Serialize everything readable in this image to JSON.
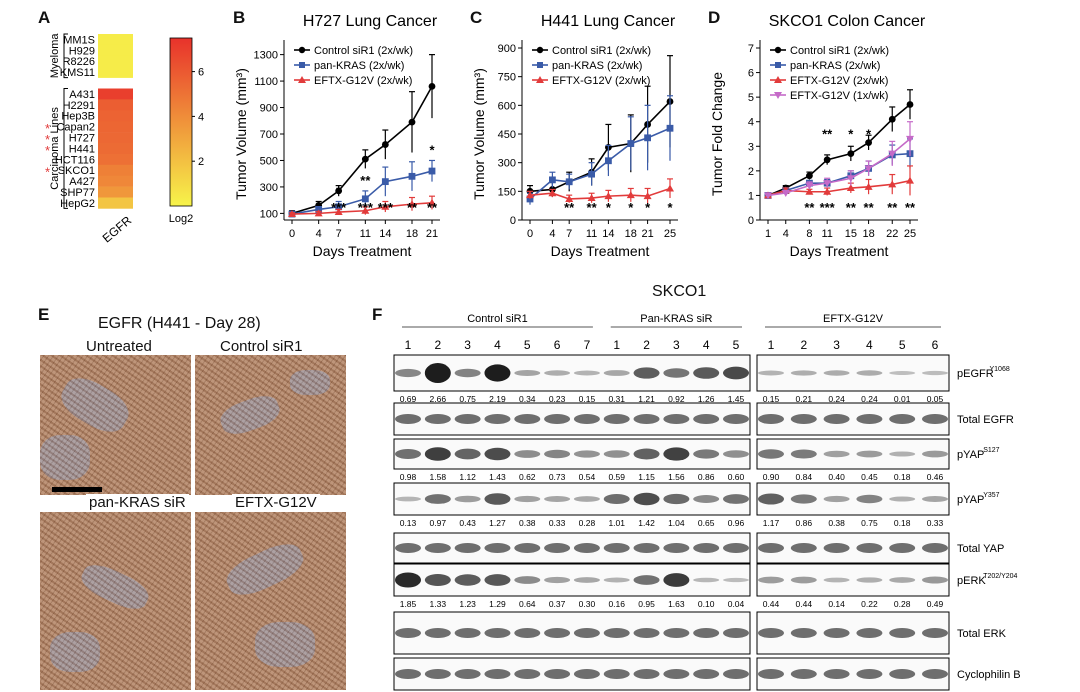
{
  "panel_labels": {
    "A": "A",
    "B": "B",
    "C": "C",
    "D": "D",
    "E": "E",
    "F": "F"
  },
  "panel_a": {
    "group_myeloma": "Myeloma",
    "group_carcinoma": "Carcinoma Lines",
    "xlabel": "EGFR",
    "colorbar_label": "Log2",
    "colorbar_ticks": [
      "2",
      "4",
      "6"
    ],
    "colorbar_range": [
      0,
      7.5
    ],
    "colors": {
      "low": "#f7f44a",
      "high": "#e8322b"
    },
    "rows": [
      {
        "name": "MM1S",
        "value": 0.3,
        "star": false
      },
      {
        "name": "H929",
        "value": 0.3,
        "star": false
      },
      {
        "name": "R8226",
        "value": 0.3,
        "star": false
      },
      {
        "name": "KMS11",
        "value": 0.3,
        "star": false
      },
      {
        "name": "",
        "value": null,
        "star": false
      },
      {
        "name": "A431",
        "value": 7.0,
        "star": false
      },
      {
        "name": "H2291",
        "value": 5.8,
        "star": false
      },
      {
        "name": "Hep3B",
        "value": 5.6,
        "star": false
      },
      {
        "name": "Capan2",
        "value": 5.5,
        "star": true
      },
      {
        "name": "H727",
        "value": 5.4,
        "star": true
      },
      {
        "name": "H441",
        "value": 5.3,
        "star": true
      },
      {
        "name": "HCT116",
        "value": 5.1,
        "star": false
      },
      {
        "name": "SKCO1",
        "value": 4.5,
        "star": true
      },
      {
        "name": "A427",
        "value": 4.2,
        "star": false
      },
      {
        "name": "SHP77",
        "value": 3.6,
        "star": false
      },
      {
        "name": "HepG2",
        "value": 1.8,
        "star": false
      }
    ]
  },
  "chart_data": [
    {
      "type": "line",
      "panel": "B",
      "title": "H727 Lung Cancer",
      "xlabel": "Days Treatment",
      "ylabel": "Tumor Volume (mm³)",
      "x": [
        0,
        4,
        7,
        11,
        14,
        18,
        21
      ],
      "yticks": [
        100,
        300,
        500,
        700,
        900,
        1100,
        1300
      ],
      "ylim": [
        50,
        1350
      ],
      "series": [
        {
          "name": "Control siR1 (2x/wk)",
          "color": "#000000",
          "marker": "circle",
          "values": [
            100,
            160,
            270,
            510,
            620,
            790,
            1060
          ],
          "err": [
            20,
            30,
            40,
            70,
            110,
            230,
            240
          ]
        },
        {
          "name": "pan-KRAS (2x/wk)",
          "color": "#3a5ba8",
          "marker": "square",
          "values": [
            95,
            130,
            150,
            210,
            340,
            380,
            420
          ],
          "err": [
            15,
            20,
            40,
            60,
            110,
            110,
            80
          ]
        },
        {
          "name": "EFTX-G12V (2x/wk)",
          "color": "#e23b3b",
          "marker": "triangle",
          "values": [
            95,
            100,
            110,
            120,
            150,
            170,
            180
          ],
          "err": [
            10,
            15,
            20,
            30,
            40,
            50,
            50
          ]
        }
      ],
      "annotations": [
        {
          "x": 7,
          "text": "*",
          "row": 0
        },
        {
          "x": 11,
          "text": "**",
          "row": 0
        },
        {
          "x": 21,
          "text": "*",
          "row": 0
        },
        {
          "x": 7,
          "text": "***",
          "row": 1
        },
        {
          "x": 11,
          "text": "***",
          "row": 1
        },
        {
          "x": 14,
          "text": "***",
          "row": 1
        },
        {
          "x": 18,
          "text": "**",
          "row": 1
        },
        {
          "x": 21,
          "text": "**",
          "row": 1
        }
      ]
    },
    {
      "type": "line",
      "panel": "C",
      "title": "H441 Lung Cancer",
      "xlabel": "Days Treatment",
      "ylabel": "Tumor Volume (mm³)",
      "x": [
        0,
        4,
        7,
        11,
        14,
        18,
        21,
        25
      ],
      "yticks": [
        0,
        150,
        300,
        450,
        600,
        750,
        900
      ],
      "ylim": [
        0,
        900
      ],
      "series": [
        {
          "name": "Control siR1 (2x/wk)",
          "color": "#000000",
          "marker": "circle",
          "values": [
            150,
            160,
            200,
            250,
            380,
            400,
            500,
            620
          ],
          "err": [
            30,
            40,
            50,
            70,
            120,
            150,
            200,
            240
          ]
        },
        {
          "name": "pan-KRAS (2x/wk)",
          "color": "#3a5ba8",
          "marker": "square",
          "values": [
            110,
            210,
            200,
            240,
            310,
            400,
            430,
            480
          ],
          "err": [
            30,
            40,
            40,
            60,
            80,
            140,
            170,
            170
          ]
        },
        {
          "name": "EFTX-G12V (2x/wk)",
          "color": "#e23b3b",
          "marker": "triangle",
          "values": [
            130,
            140,
            110,
            115,
            125,
            130,
            125,
            165
          ],
          "err": [
            20,
            20,
            20,
            25,
            30,
            35,
            40,
            50
          ]
        }
      ],
      "annotations": [
        {
          "x": 7,
          "text": "**",
          "row": 1
        },
        {
          "x": 11,
          "text": "**",
          "row": 1
        },
        {
          "x": 14,
          "text": "*",
          "row": 1
        },
        {
          "x": 18,
          "text": "*",
          "row": 1
        },
        {
          "x": 21,
          "text": "*",
          "row": 1
        },
        {
          "x": 25,
          "text": "*",
          "row": 1
        }
      ]
    },
    {
      "type": "line",
      "panel": "D",
      "title": "SKCO1 Colon Cancer",
      "xlabel": "Days Treatment",
      "ylabel": "Tumor Fold Change",
      "x": [
        1,
        4,
        8,
        11,
        15,
        18,
        22,
        25
      ],
      "yticks": [
        0,
        1,
        2,
        3,
        4,
        5,
        6,
        7
      ],
      "ylim": [
        0,
        7
      ],
      "series": [
        {
          "name": "Control siR1 (2x/wk)",
          "color": "#000000",
          "marker": "circle",
          "values": [
            1.0,
            1.3,
            1.8,
            2.45,
            2.7,
            3.15,
            4.1,
            4.7
          ],
          "err": [
            0.05,
            0.1,
            0.15,
            0.2,
            0.3,
            0.3,
            0.5,
            0.6
          ]
        },
        {
          "name": "pan-KRAS (2x/wk)",
          "color": "#3a5ba8",
          "marker": "square",
          "values": [
            1.0,
            1.2,
            1.5,
            1.5,
            1.8,
            2.1,
            2.65,
            2.7
          ],
          "err": [
            0.05,
            0.1,
            0.1,
            0.15,
            0.2,
            0.3,
            0.4,
            0.6
          ]
        },
        {
          "name": "EFTX-G12V (2x/wk)",
          "color": "#e23b3b",
          "marker": "triangle",
          "values": [
            1.0,
            1.2,
            1.15,
            1.15,
            1.3,
            1.35,
            1.45,
            1.6
          ],
          "err": [
            0.05,
            0.1,
            0.1,
            0.15,
            0.2,
            0.3,
            0.4,
            0.6
          ]
        },
        {
          "name": "EFTX-G12V (1x/wk)",
          "color": "#c56ac8",
          "marker": "triangle-down",
          "values": [
            1.0,
            1.1,
            1.4,
            1.5,
            1.7,
            2.1,
            2.7,
            3.3
          ],
          "err": [
            0.05,
            0.1,
            0.15,
            0.2,
            0.3,
            0.3,
            0.5,
            0.7
          ]
        }
      ],
      "annotations": [
        {
          "x": 11,
          "text": "**",
          "row": 0
        },
        {
          "x": 15,
          "text": "*",
          "row": 0
        },
        {
          "x": 18,
          "text": "*",
          "row": 0
        },
        {
          "x": 8,
          "text": "**",
          "row": 1
        },
        {
          "x": 11,
          "text": "***",
          "row": 1
        },
        {
          "x": 15,
          "text": "**",
          "row": 1
        },
        {
          "x": 18,
          "text": "**",
          "row": 1
        },
        {
          "x": 22,
          "text": "**",
          "row": 1
        },
        {
          "x": 25,
          "text": "**",
          "row": 1
        }
      ]
    }
  ],
  "panel_e": {
    "title": "EGFR (H441 - Day 28)",
    "labels": [
      "Untreated",
      "Control siR1",
      "pan-KRAS siR",
      "EFTX-G12V"
    ]
  },
  "panel_f": {
    "title": "SKCO1",
    "groups": [
      "Control siR1",
      "Pan-KRAS siR",
      "EFTX-G12V"
    ],
    "lanes_left": [
      "1",
      "2",
      "3",
      "4",
      "5",
      "6",
      "7",
      "1",
      "2",
      "3",
      "4",
      "5"
    ],
    "lanes_right": [
      "1",
      "2",
      "3",
      "4",
      "5",
      "6"
    ],
    "blots": [
      {
        "label": "pEGFR",
        "sup": "Y1068",
        "quant": [
          "0.69",
          "2.66",
          "0.75",
          "2.19",
          "0.34",
          "0.23",
          "0.15",
          "0.31",
          "1.21",
          "0.92",
          "1.26",
          "1.45",
          "0.15",
          "0.21",
          "0.24",
          "0.24",
          "0.01",
          "0.05"
        ]
      },
      {
        "label": "Total EGFR",
        "sup": "",
        "quant": []
      },
      {
        "label": "pYAP",
        "sup": "S127",
        "quant": [
          "0.98",
          "1.58",
          "1.12",
          "1.43",
          "0.62",
          "0.73",
          "0.54",
          "0.59",
          "1.15",
          "1.56",
          "0.86",
          "0.60",
          "0.90",
          "0.84",
          "0.40",
          "0.45",
          "0.18",
          "0.46"
        ]
      },
      {
        "label": "pYAP",
        "sup": "Y357",
        "quant": [
          "0.13",
          "0.97",
          "0.43",
          "1.27",
          "0.38",
          "0.33",
          "0.28",
          "1.01",
          "1.42",
          "1.04",
          "0.65",
          "0.96",
          "1.17",
          "0.86",
          "0.38",
          "0.75",
          "0.18",
          "0.33"
        ]
      },
      {
        "label": "Total YAP",
        "sup": "",
        "quant": []
      },
      {
        "label": "pERK",
        "sup": "T202/Y204",
        "quant": [
          "1.85",
          "1.33",
          "1.23",
          "1.29",
          "0.64",
          "0.37",
          "0.30",
          "0.16",
          "0.95",
          "1.63",
          "0.10",
          "0.04",
          "0.44",
          "0.44",
          "0.14",
          "0.22",
          "0.28",
          "0.49"
        ]
      },
      {
        "label": "Total ERK",
        "sup": "",
        "quant": []
      },
      {
        "label": "Cyclophilin B",
        "sup": "",
        "quant": []
      }
    ]
  }
}
